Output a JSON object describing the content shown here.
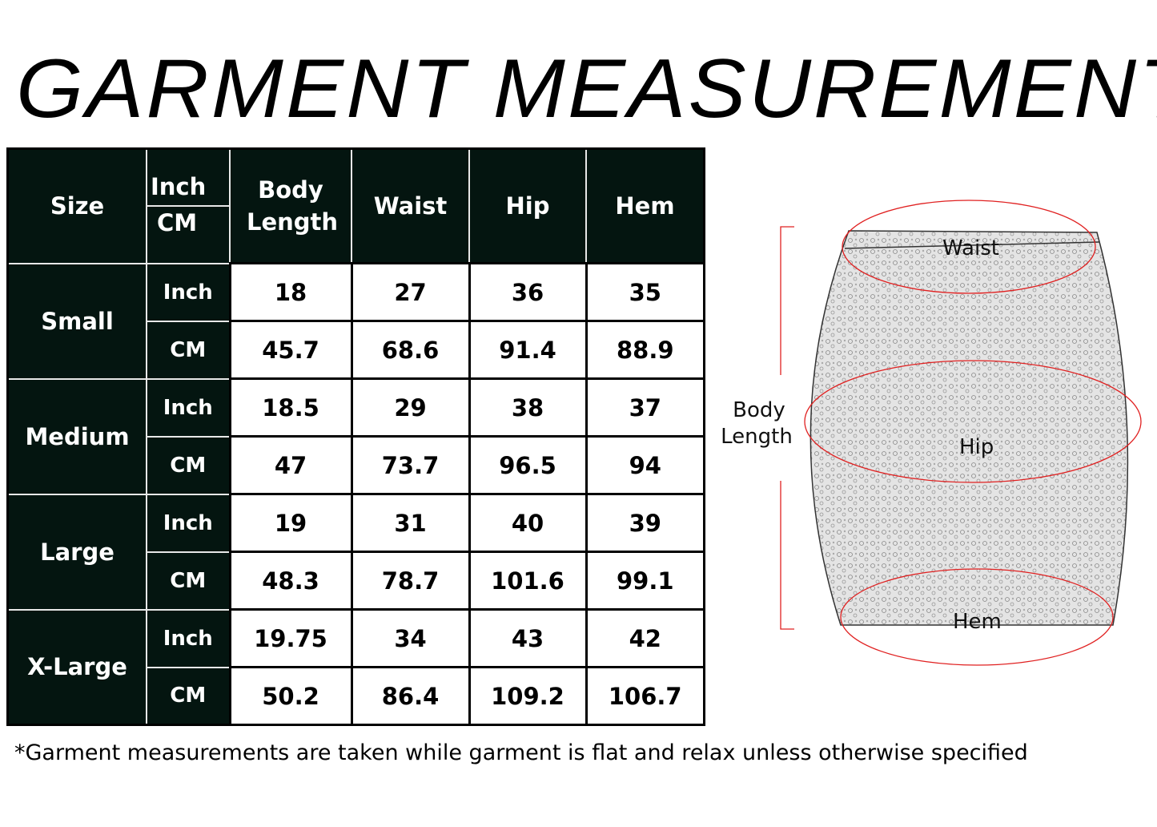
{
  "title": "GARMENT MEASUREMENTS",
  "table": {
    "headers": {
      "size": "Size",
      "unit_inch": "Inch",
      "unit_cm": "CM",
      "columns": [
        "Body Length",
        "Waist",
        "Hip",
        "Hem"
      ]
    },
    "rows": [
      {
        "size": "Small",
        "inch": {
          "unit": "Inch",
          "values": [
            "18",
            "27",
            "36",
            "35"
          ]
        },
        "cm": {
          "unit": "CM",
          "values": [
            "45.7",
            "68.6",
            "91.4",
            "88.9"
          ]
        }
      },
      {
        "size": "Medium",
        "inch": {
          "unit": "Inch",
          "values": [
            "18.5",
            "29",
            "38",
            "37"
          ]
        },
        "cm": {
          "unit": "CM",
          "values": [
            "47",
            "73.7",
            "96.5",
            "94"
          ]
        }
      },
      {
        "size": "Large",
        "inch": {
          "unit": "Inch",
          "values": [
            "19",
            "31",
            "40",
            "39"
          ]
        },
        "cm": {
          "unit": "CM",
          "values": [
            "48.3",
            "78.7",
            "101.6",
            "99.1"
          ]
        }
      },
      {
        "size": "X-Large",
        "inch": {
          "unit": "Inch",
          "values": [
            "19.75",
            "34",
            "43",
            "42"
          ]
        },
        "cm": {
          "unit": "CM",
          "values": [
            "50.2",
            "86.4",
            "109.2",
            "106.7"
          ]
        }
      }
    ]
  },
  "diagram": {
    "waist": "Waist",
    "hip": "Hip",
    "hem": "Hem",
    "body_length_1": "Body",
    "body_length_2": "Length",
    "ellipse_color": "#e02020",
    "header_color": "#041510"
  },
  "note": "*Garment measurements are taken while garment is flat and relax unless otherwise specified"
}
